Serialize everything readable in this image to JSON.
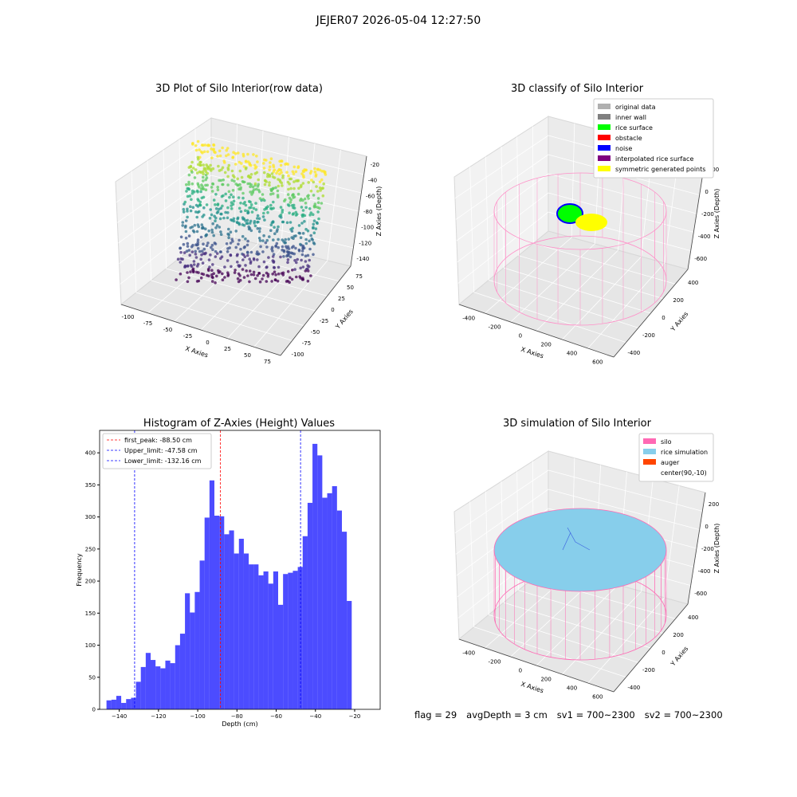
{
  "figure": {
    "supertitle": "JEJER07 2026-05-04 12:27:50",
    "footer": {
      "flag": "flag = 29",
      "avg_depth": "avgDepth = 3 cm",
      "sv1": "sv1 = 700~2300",
      "sv2": "sv2 = 700~2300"
    }
  },
  "panels": {
    "raw": {
      "title": "3D Plot of Silo Interior(row data)",
      "xlabel": "X Axies",
      "ylabel": "Y Axies",
      "zlabel": "Z Axies (Depth)",
      "xticks": [
        "-100",
        "-75",
        "-50",
        "-25",
        "0",
        "25",
        "50",
        "75"
      ],
      "yticks": [
        "-100",
        "-75",
        "-50",
        "-25",
        "0",
        "25",
        "50",
        "75"
      ],
      "zticks": [
        "-20",
        "-40",
        "-60",
        "-80",
        "-100",
        "-120",
        "-140"
      ],
      "colormap": "viridis"
    },
    "classify": {
      "title": "3D classify of Silo Interior",
      "xlabel": "X Axies",
      "ylabel": "Y Axies",
      "zlabel": "Z Axies (Depth)",
      "xticks": [
        "-400",
        "-200",
        "0",
        "200",
        "400",
        "600"
      ],
      "yticks": [
        "-400",
        "-200",
        "0",
        "200",
        "400"
      ],
      "zticks": [
        "200",
        "0",
        "-200",
        "-400",
        "-600"
      ],
      "legend": [
        {
          "label": "original data",
          "color": "#b0b0b0"
        },
        {
          "label": "inner wall",
          "color": "#808080"
        },
        {
          "label": "rice surface",
          "color": "#00ff00"
        },
        {
          "label": "obstacle",
          "color": "#ff0000"
        },
        {
          "label": "noise",
          "color": "#0000ff"
        },
        {
          "label": "interpolated rice surface",
          "color": "#800080"
        },
        {
          "label": "symmetric generated points",
          "color": "#ffff00"
        }
      ]
    },
    "simulation": {
      "title": "3D simulation of Silo Interior",
      "xlabel": "X Axies",
      "ylabel": "Y Axies",
      "zlabel": "Z Axies (Depth)",
      "xticks": [
        "-400",
        "-200",
        "0",
        "200",
        "400",
        "600"
      ],
      "yticks": [
        "-400",
        "-200",
        "0",
        "200",
        "400"
      ],
      "zticks": [
        "200",
        "0",
        "-200",
        "-400",
        "-600"
      ],
      "legend": [
        {
          "label": "silo",
          "color": "#ff69b4"
        },
        {
          "label": "rice simulation",
          "color": "#87ceeb"
        },
        {
          "label": "auger",
          "color": "#ff4500"
        },
        {
          "label": "center(90,-10)",
          "color": ""
        }
      ]
    }
  },
  "chart_data": {
    "type": "bar",
    "title": "Histogram of Z-Axies (Height) Values",
    "xlabel": "Depth (cm)",
    "ylabel": "Frequency",
    "bar_color": "#0000ff",
    "xlim": [
      -150,
      -7
    ],
    "ylim": [
      0,
      435
    ],
    "xticks": [
      -140,
      -120,
      -100,
      -80,
      -60,
      -40,
      -20
    ],
    "yticks": [
      0,
      50,
      100,
      150,
      200,
      250,
      300,
      350,
      400
    ],
    "bin_start": -146.5,
    "bin_width": 2.5,
    "counts": [
      14,
      15,
      21,
      10,
      16,
      18,
      43,
      66,
      88,
      77,
      67,
      64,
      76,
      72,
      100,
      118,
      181,
      151,
      183,
      232,
      299,
      357,
      302,
      301,
      273,
      279,
      243,
      266,
      243,
      226,
      226,
      209,
      215,
      196,
      215,
      163,
      211,
      213,
      216,
      222,
      270,
      322,
      414,
      396,
      330,
      337,
      348,
      310,
      277,
      169
    ],
    "lines": [
      {
        "label": "first_peak: -88.50 cm",
        "x": -88.5,
        "color": "#ff0000"
      },
      {
        "label": "Upper_limit: -47.58 cm",
        "x": -47.58,
        "color": "#0000ff"
      },
      {
        "label": "Lower_limit: -132.16 cm",
        "x": -132.16,
        "color": "#0000ff"
      }
    ],
    "legend_position": "upper left"
  }
}
